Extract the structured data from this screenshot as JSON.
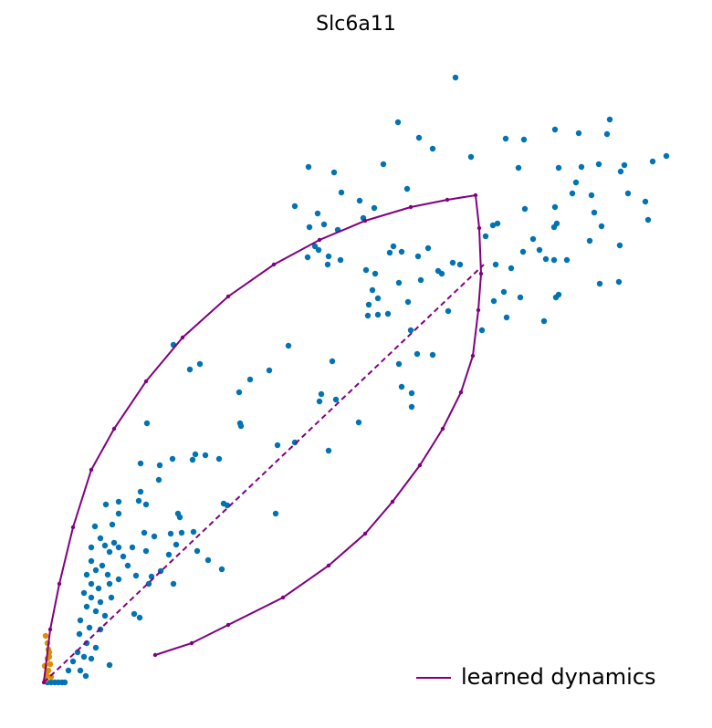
{
  "chart_data": {
    "type": "scatter",
    "title": "Slc6a11",
    "xlim": [
      0,
      687
    ],
    "ylim": [
      0,
      663
    ],
    "grid": false,
    "legend": "lower right",
    "series": [
      {
        "color": "#0173b2",
        "x": [
          451,
          388,
          411,
          426,
          468,
          506,
          526,
          560,
          586,
          620,
          617,
          682,
          667,
          636,
          632,
          608,
          589,
          564,
          520,
          583,
          579,
          600,
          640,
          659,
          662,
          603,
          611,
          560,
          562,
          559,
          527,
          536,
          543,
          525,
          598,
          631,
          550,
          559,
          573,
          512,
          495,
          609,
          630,
          564,
          561,
          522,
          504,
          493,
          507,
          548,
          480,
          484,
          492,
          497,
          290,
          318,
          372,
          326,
          398,
          346,
          362,
          350,
          275,
          300,
          291,
          307,
          322,
          297,
          301,
          289,
          312,
          325,
          383,
          392,
          421,
          379,
          410,
          432,
          436,
          448,
          456,
          311,
          353,
          363,
          413,
          389,
          360,
          366,
          399,
          356,
          355,
          366,
          377,
          443,
          402,
          142,
          268,
          171,
          160,
          316,
          409,
          426,
          389,
          247,
          226,
          214,
          392,
          403,
          304,
          302,
          320,
          403,
          215,
          216,
          345,
          113,
          275,
          256,
          312,
          127,
          141,
          166,
          177,
          163,
          192,
          106,
          126,
          106,
          104,
          112,
          82,
          68,
          82,
          197,
          201,
          147,
          149,
          254,
          75,
          56,
          110,
          139,
          151,
          164,
          121,
          145,
          168,
          180,
          195,
          137,
          112,
          128,
          118,
          142,
          115,
          101,
          99,
          105,
          72,
          46,
          62,
          67,
          72,
          77,
          82,
          87,
          52,
          57,
          64,
          70,
          47,
          52,
          60,
          72,
          82,
          44,
          52,
          62,
          74,
          47,
          57,
          67,
          40,
          50,
          62,
          39,
          47,
          57,
          37,
          44,
          32,
          52,
          27,
          40,
          92,
          97,
          52,
          4,
          8,
          12,
          16,
          20,
          23
        ],
        "values": [
          663,
          614,
          597,
          585,
          576,
          596,
          595,
          606,
          602,
          617,
          601,
          577,
          571,
          567,
          560,
          568,
          565,
          564,
          564,
          548,
          536,
          534,
          536,
          527,
          507,
          515,
          500,
          521,
          503,
          499,
          519,
          486,
          474,
          472,
          484,
          479,
          464,
          463,
          463,
          454,
          458,
          437,
          439,
          425,
          422,
          422,
          428,
          418,
          400,
          396,
          386,
          489,
          501,
          503,
          565,
          559,
          568,
          537,
          541,
          528,
          520,
          509,
          522,
          514,
          499,
          502,
          496,
          478,
          474,
          466,
          467,
          463,
          478,
          472,
          476,
          471,
          467,
          451,
          448,
          460,
          458,
          458,
          452,
          448,
          441,
          438,
          430,
          421,
          417,
          414,
          402,
          403,
          404,
          407,
          386,
          370,
          369,
          349,
          343,
          352,
          360,
          359,
          349,
          342,
          332,
          318,
          324,
          317,
          316,
          308,
          310,
          302,
          284,
          281,
          285,
          284,
          263,
          260,
          254,
          238,
          245,
          250,
          249,
          244,
          245,
          240,
          222,
          209,
          199,
          195,
          198,
          195,
          185,
          196,
          194,
          185,
          181,
          185,
          173,
          171,
          164,
          163,
          164,
          165,
          160,
          151,
          144,
          134,
          124,
          140,
          144,
          122,
          116,
          108,
          108,
          117,
          75,
          71,
          19,
          7,
          158,
          150,
          143,
          153,
          148,
          138,
          133,
          123,
          128,
          118,
          118,
          108,
          103,
          108,
          113,
          98,
          93,
          88,
          93,
          83,
          78,
          73,
          68,
          60,
          58,
          53,
          43,
          38,
          33,
          28,
          23,
          26,
          13,
          13,
          128,
          148,
          148,
          0,
          0,
          0,
          0,
          0,
          0
        ]
      },
      {
        "color": "#de8f05",
        "x": [
          2,
          4,
          5,
          6,
          7,
          5,
          3,
          8,
          2,
          1,
          4,
          6
        ],
        "values": [
          51,
          43,
          36,
          28,
          20,
          13,
          8,
          6,
          3,
          18,
          26,
          33
        ]
      },
      {
        "name": "learned dynamics",
        "type": "line",
        "color": "#800080",
        "markers": true,
        "x": [
          0,
          7,
          17,
          32,
          52,
          77,
          112,
          152,
          202,
          252,
          302,
          352,
          402,
          442,
          473,
          477,
          479,
          476,
          470,
          457,
          437,
          412,
          382,
          352,
          312,
          262,
          202,
          162,
          122
        ],
        "values": [
          0,
          58,
          108,
          170,
          233,
          278,
          330,
          378,
          423,
          458,
          485,
          506,
          521,
          529,
          534,
          498,
          448,
          408,
          358,
          318,
          278,
          238,
          198,
          163,
          128,
          93,
          63,
          43,
          30
        ]
      },
      {
        "type": "line",
        "color": "#800080",
        "line_style": "dashed",
        "x": [
          0,
          482
        ],
        "values": [
          0,
          458
        ]
      }
    ]
  }
}
